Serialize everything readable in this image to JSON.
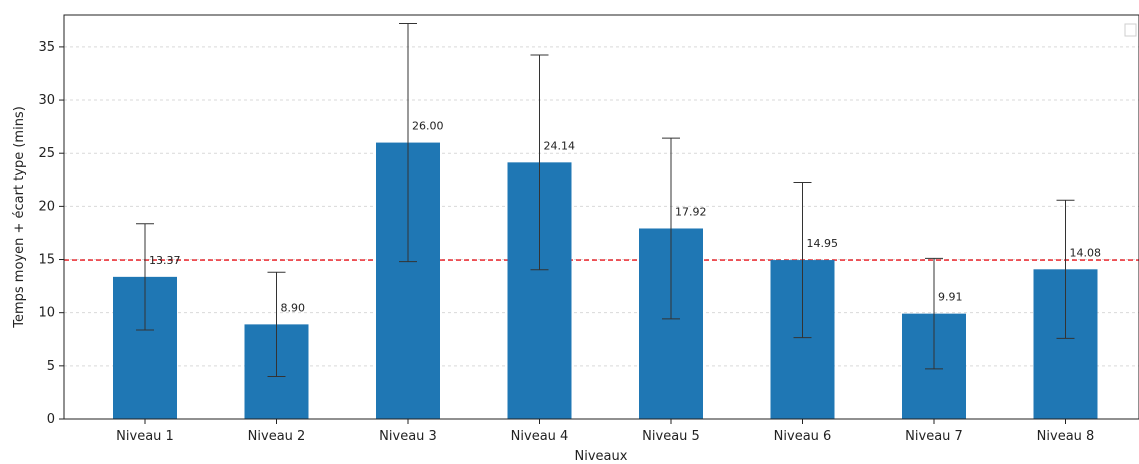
{
  "chart_data": {
    "type": "bar",
    "title": "",
    "xlabel": "Niveaux",
    "ylabel": "Temps moyen + écart type (mins)",
    "categories": [
      "Niveau 1",
      "Niveau 2",
      "Niveau 3",
      "Niveau 4",
      "Niveau 5",
      "Niveau 6",
      "Niveau 7",
      "Niveau 8"
    ],
    "values": [
      13.37,
      8.9,
      26.0,
      24.14,
      17.92,
      14.95,
      9.91,
      14.08
    ],
    "value_labels": [
      "13.37",
      "8.90",
      "26.00",
      "24.14",
      "17.92",
      "14.95",
      "9.91",
      "14.08"
    ],
    "error": [
      5.0,
      4.9,
      11.2,
      10.1,
      8.5,
      7.3,
      5.2,
      6.5
    ],
    "reference_line": {
      "value": 14.95,
      "color": "#e8151b",
      "style": "dashed"
    },
    "ylim": [
      0,
      38
    ],
    "yticks": [
      "0",
      "5",
      "10",
      "15",
      "20",
      "25",
      "30",
      "35"
    ],
    "ytick_values": [
      0,
      5,
      10,
      15,
      20,
      25,
      30,
      35
    ],
    "grid": "y-dashed",
    "legend": "top-right (empty)",
    "bar_color": "#1f77b4"
  }
}
